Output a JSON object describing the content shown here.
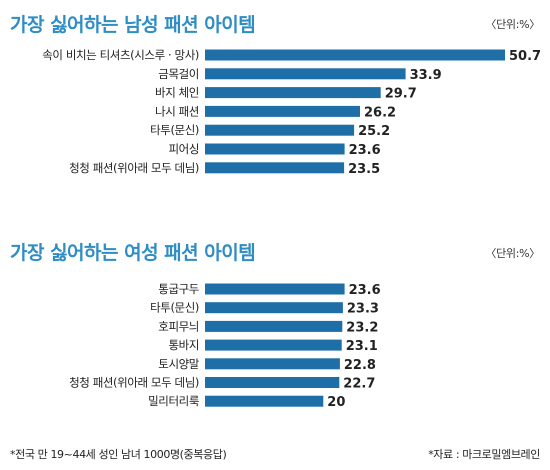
{
  "colors": {
    "bar": "#1e6fa8",
    "title": "#2f8dc4"
  },
  "chart_data": [
    {
      "type": "bar",
      "orientation": "horizontal",
      "title": "가장 싫어하는 남성 패션 아이템",
      "unit": "〈단위:%〉",
      "categories": [
        "속이 비치는 티셔츠(시스루 · 망사)",
        "금목걸이",
        "바지 체인",
        "나시 패션",
        "타투(문신)",
        "피어싱",
        "청청 패션(위아래 모두 데님)"
      ],
      "values": [
        50.7,
        33.9,
        29.7,
        26.2,
        25.2,
        23.6,
        23.5
      ],
      "value_labels": [
        "50.7",
        "33.9",
        "29.7",
        "26.2",
        "25.2",
        "23.6",
        "23.5"
      ],
      "xlim": [
        0,
        50.7
      ],
      "grid": false,
      "legend": "none"
    },
    {
      "type": "bar",
      "orientation": "horizontal",
      "title": "가장 싫어하는 여성 패션 아이템",
      "unit": "〈단위:%〉",
      "categories": [
        "통굽구두",
        "타투(문신)",
        "호피무늬",
        "통바지",
        "토시양말",
        "청청 패션(위아래 모두 데님)",
        "밀리터리룩"
      ],
      "values": [
        23.6,
        23.3,
        23.2,
        23.1,
        22.8,
        22.7,
        20
      ],
      "value_labels": [
        "23.6",
        "23.3",
        "23.2",
        "23.1",
        "22.8",
        "22.7",
        "20"
      ],
      "xlim": [
        0,
        50.7
      ],
      "grid": false,
      "legend": "none"
    }
  ],
  "footer": {
    "note": "*전국 만 19~44세 성인 남녀 1000명(중복응답)",
    "source": "*자료 : 마크로밀엠브레인"
  }
}
